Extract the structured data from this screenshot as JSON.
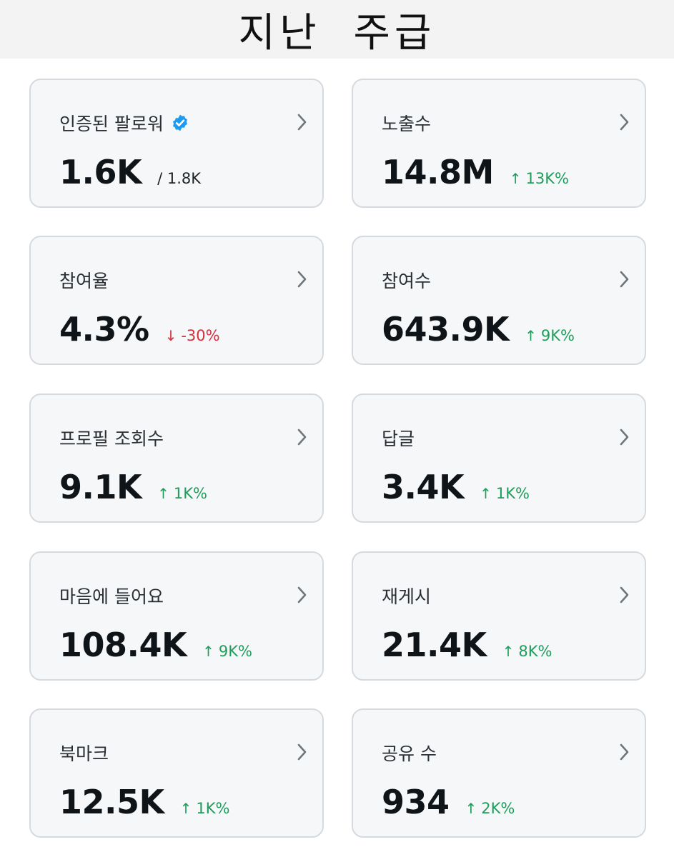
{
  "header": {
    "title": "지난 주급"
  },
  "cards": [
    {
      "label": "인증된 팔로워",
      "value": "1.6K",
      "sub": "/ 1.8K",
      "delta": "",
      "direction": "",
      "verified": true
    },
    {
      "label": "노출수",
      "value": "14.8M",
      "sub": "",
      "delta": "13K%",
      "direction": "up",
      "verified": false
    },
    {
      "label": "참여율",
      "value": "4.3%",
      "sub": "",
      "delta": "-30%",
      "direction": "down",
      "verified": false
    },
    {
      "label": "참여수",
      "value": "643.9K",
      "sub": "",
      "delta": "9K%",
      "direction": "up",
      "verified": false
    },
    {
      "label": "프로필 조회수",
      "value": "9.1K",
      "sub": "",
      "delta": "1K%",
      "direction": "up",
      "verified": false
    },
    {
      "label": "답글",
      "value": "3.4K",
      "sub": "",
      "delta": "1K%",
      "direction": "up",
      "verified": false
    },
    {
      "label": "마음에 들어요",
      "value": "108.4K",
      "sub": "",
      "delta": "9K%",
      "direction": "up",
      "verified": false
    },
    {
      "label": "재게시",
      "value": "21.4K",
      "sub": "",
      "delta": "8K%",
      "direction": "up",
      "verified": false
    },
    {
      "label": "북마크",
      "value": "12.5K",
      "sub": "",
      "delta": "1K%",
      "direction": "up",
      "verified": false
    },
    {
      "label": "공유 수",
      "value": "934",
      "sub": "",
      "delta": "2K%",
      "direction": "up",
      "verified": false
    }
  ],
  "icons": {
    "verified": "verified-badge-icon",
    "chevron": "chevron-right-icon",
    "up": "arrow-up-icon",
    "down": "arrow-down-icon"
  },
  "colors": {
    "up": "#1f9d5c",
    "down": "#d5303d",
    "verified": "#1d9bf0"
  }
}
